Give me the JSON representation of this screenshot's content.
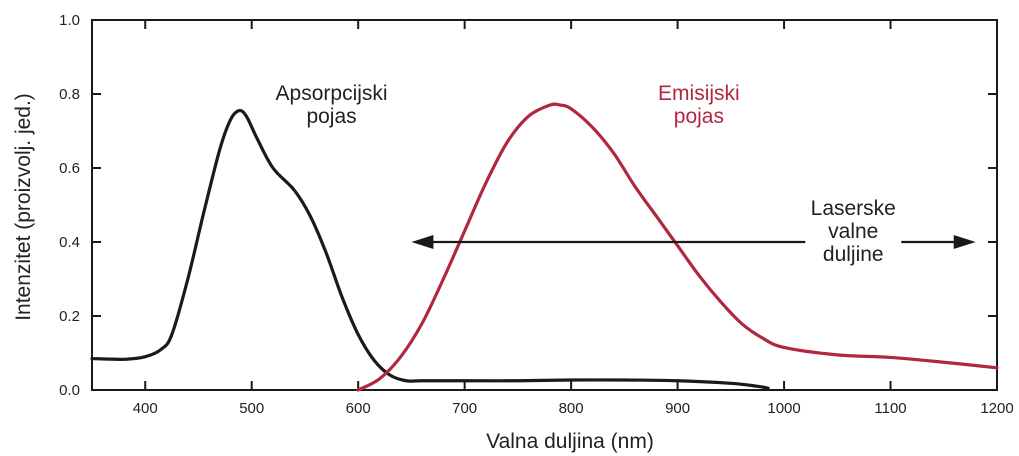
{
  "chart_data": {
    "type": "line",
    "xlabel": "Valna duljina (nm)",
    "ylabel": "Intenzitet (proizvolj. jed.)",
    "xlim": [
      350,
      1200
    ],
    "ylim": [
      0.0,
      1.0
    ],
    "xticks": [
      "400",
      "500",
      "600",
      "700",
      "800",
      "900",
      "1000",
      "1100",
      "1200"
    ],
    "yticks": [
      "0.0",
      "0.2",
      "0.4",
      "0.6",
      "0.8",
      "1.0"
    ],
    "grid": false,
    "series": [
      {
        "name": "Apsorpcijski pojas",
        "color": "#1a1a1a",
        "x": [
          350,
          380,
          400,
          415,
          425,
          440,
          455,
          470,
          480,
          488,
          495,
          505,
          520,
          540,
          555,
          570,
          585,
          600,
          615,
          630,
          645,
          660,
          700,
          750,
          800,
          850,
          900,
          950,
          975,
          985
        ],
        "y": [
          0.085,
          0.083,
          0.09,
          0.11,
          0.15,
          0.3,
          0.48,
          0.65,
          0.73,
          0.755,
          0.74,
          0.68,
          0.6,
          0.54,
          0.47,
          0.37,
          0.25,
          0.15,
          0.08,
          0.04,
          0.025,
          0.025,
          0.025,
          0.025,
          0.027,
          0.027,
          0.025,
          0.018,
          0.01,
          0.005
        ]
      },
      {
        "name": "Emisijski pojas",
        "color": "#b0283f",
        "x": [
          600,
          620,
          640,
          660,
          680,
          700,
          720,
          740,
          760,
          780,
          790,
          800,
          820,
          840,
          860,
          880,
          900,
          920,
          940,
          960,
          980,
          1000,
          1050,
          1100,
          1150,
          1200
        ],
        "y": [
          0.0,
          0.03,
          0.09,
          0.18,
          0.3,
          0.43,
          0.56,
          0.67,
          0.74,
          0.77,
          0.77,
          0.76,
          0.71,
          0.64,
          0.55,
          0.47,
          0.39,
          0.31,
          0.24,
          0.18,
          0.14,
          0.115,
          0.095,
          0.088,
          0.075,
          0.06
        ]
      }
    ],
    "annotations": [
      {
        "text_lines": [
          "Apsorpcijski",
          "pojas"
        ],
        "color": "#222222",
        "x": 575,
        "y": 0.8
      },
      {
        "text_lines": [
          "Emisijski",
          "pojas"
        ],
        "color": "#b0283f",
        "x": 920,
        "y": 0.8
      },
      {
        "text_lines": [
          "Laserske",
          "valne",
          "duljine"
        ],
        "color": "#222222",
        "x": 1065,
        "y": 0.43
      }
    ],
    "arrow": {
      "color": "#1a1a1a",
      "x_start": 650,
      "x_end": 1180,
      "y": 0.4
    }
  }
}
